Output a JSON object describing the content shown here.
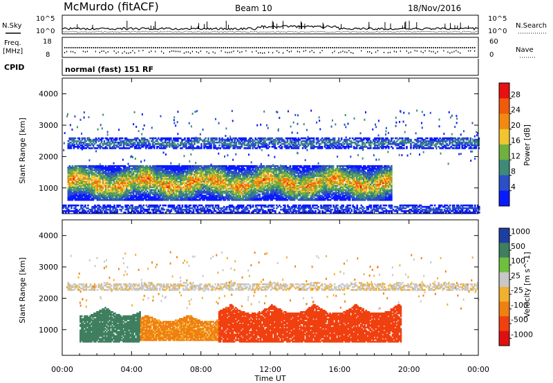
{
  "header": {
    "title": "McMurdo (fitACF)",
    "beam": "Beam 10",
    "date": "18/Nov/2016",
    "cpid_label": "CPID",
    "cpid_value": "normal (fast) 151 RF"
  },
  "noise_panel": {
    "left_label": "N.Sky",
    "right_label": "N.Search",
    "tick_top": "10^5",
    "tick_bottom": "10^0",
    "right_tick_top": "10^5",
    "right_tick_bottom": "10^0"
  },
  "freq_panel": {
    "label_line1": "Freq.",
    "label_line2": "[MHz]",
    "left_ticks": [
      "18",
      "8"
    ],
    "right_ticks": [
      "60",
      "0"
    ],
    "right_label": "Nave"
  },
  "chart_data": [
    {
      "type": "heatmap",
      "name": "power",
      "ylabel": "Slant Range [km]",
      "ylim": [
        180,
        4500
      ],
      "y_ticks": [
        1000,
        2000,
        3000,
        4000
      ],
      "x_ticks": [
        "00:00",
        "04:00",
        "08:00",
        "12:00",
        "16:00",
        "20:00",
        "00:00"
      ],
      "xlim_hours": [
        0,
        24
      ],
      "colorbar": {
        "label": "Power [dB]",
        "range": [
          0,
          32
        ],
        "ticks": [
          "4",
          "8",
          "12",
          "16",
          "20",
          "24",
          "28"
        ],
        "colors": [
          "#0a1aff",
          "#2a4fc8",
          "#3d8a7a",
          "#6fb03f",
          "#f0c530",
          "#f08a10",
          "#f05a0a",
          "#e81010"
        ]
      },
      "bands": [
        {
          "label": "main echo band",
          "range_km": [
            600,
            1700
          ],
          "t_hours": [
            0.3,
            19.0
          ],
          "peak_db": 28
        },
        {
          "label": "secondary band",
          "range_km": [
            2250,
            2600
          ],
          "t_hours": [
            0.3,
            24
          ],
          "peak_db": 12
        },
        {
          "label": "near-range band",
          "range_km": [
            200,
            450
          ],
          "t_hours": [
            0,
            24
          ],
          "peak_db": 8
        }
      ]
    },
    {
      "type": "heatmap",
      "name": "velocity",
      "ylabel": "Slant Range [km]",
      "ylim": [
        180,
        4500
      ],
      "y_ticks": [
        1000,
        2000,
        3000,
        4000
      ],
      "x_ticks": [
        "00:00",
        "04:00",
        "08:00",
        "12:00",
        "16:00",
        "20:00",
        "00:00"
      ],
      "xlim_hours": [
        0,
        24
      ],
      "xlabel": "Time UT",
      "colorbar": {
        "label": "Velocity [m s^-1]",
        "ticks": [
          "1000",
          "500",
          "100",
          "25",
          "-25",
          "-100",
          "-500",
          "-1000"
        ],
        "colors": [
          "#1f3fa0",
          "#3f7f5f",
          "#6fbf3f",
          "#c8c8c8",
          "#f0b030",
          "#f08010",
          "#f04010",
          "#e01010"
        ]
      },
      "segments": [
        {
          "t_hours": [
            1.0,
            4.5
          ],
          "range_km": [
            600,
            1700
          ],
          "velocity": 300
        },
        {
          "t_hours": [
            4.5,
            9.0
          ],
          "range_km": [
            650,
            1450
          ],
          "velocity": -100
        },
        {
          "t_hours": [
            9.0,
            19.5
          ],
          "range_km": [
            600,
            1800
          ],
          "velocity": -300
        },
        {
          "t_hours": [
            0.3,
            24
          ],
          "range_km": [
            2250,
            2500
          ],
          "velocity": 0
        }
      ]
    }
  ]
}
